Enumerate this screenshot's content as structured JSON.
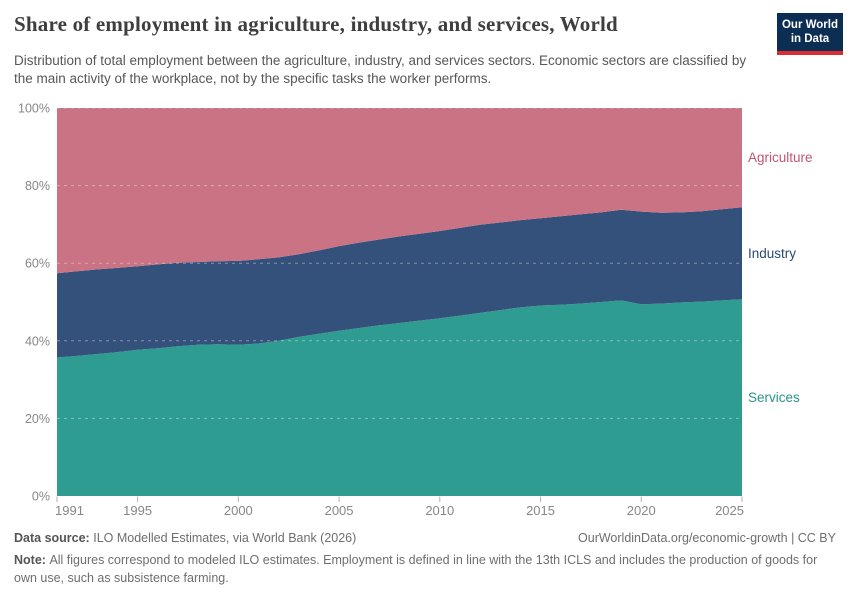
{
  "header": {
    "title": "Share of employment in agriculture, industry, and services, World",
    "subtitle": "Distribution of total employment between the agriculture, industry, and services sectors. Economic sectors are classified by the main activity of the workplace, not by the specific tasks the worker performs.",
    "logo": {
      "line1": "Our World",
      "line2": "in Data",
      "bg": "#0d2e53",
      "accent": "#dc2c33"
    }
  },
  "chart_data": {
    "type": "area",
    "stacked": true,
    "entity": "World",
    "x": [
      1991,
      1992,
      1993,
      1994,
      1995,
      1996,
      1997,
      1998,
      1999,
      2000,
      2001,
      2002,
      2003,
      2004,
      2005,
      2006,
      2007,
      2008,
      2009,
      2010,
      2011,
      2012,
      2013,
      2014,
      2015,
      2016,
      2017,
      2018,
      2019,
      2020,
      2021,
      2022,
      2023,
      2024,
      2025
    ],
    "series": [
      {
        "name": "Services",
        "color": "#2f9c91",
        "label_color": "#27948a",
        "values": [
          35.7,
          36.1,
          36.6,
          37.1,
          37.7,
          38.1,
          38.6,
          39.0,
          39.1,
          39.0,
          39.3,
          40.0,
          41.0,
          41.8,
          42.6,
          43.3,
          44.0,
          44.6,
          45.2,
          45.8,
          46.5,
          47.2,
          47.9,
          48.6,
          49.1,
          49.3,
          49.6,
          50.0,
          50.4,
          49.4,
          49.6,
          49.9,
          50.1,
          50.4,
          50.7
        ]
      },
      {
        "name": "Industry",
        "color": "#34517b",
        "label_color": "#2b4a77",
        "values": [
          21.7,
          21.8,
          21.8,
          21.7,
          21.5,
          21.6,
          21.5,
          21.3,
          21.4,
          21.6,
          21.7,
          21.5,
          21.3,
          21.5,
          21.8,
          22.0,
          22.1,
          22.3,
          22.4,
          22.5,
          22.6,
          22.7,
          22.6,
          22.5,
          22.5,
          22.8,
          23.0,
          23.1,
          23.4,
          23.9,
          23.4,
          23.2,
          23.3,
          23.5,
          23.7
        ]
      },
      {
        "name": "Agriculture",
        "color": "#ca7384",
        "label_color": "#c05670",
        "values": [
          42.6,
          42.1,
          41.6,
          41.2,
          40.8,
          40.3,
          39.9,
          39.7,
          39.5,
          39.4,
          39.0,
          38.5,
          37.7,
          36.7,
          35.6,
          34.7,
          33.9,
          33.1,
          32.4,
          31.7,
          30.9,
          30.1,
          29.5,
          28.9,
          28.4,
          27.9,
          27.4,
          26.9,
          26.2,
          26.7,
          27.0,
          26.9,
          26.6,
          26.1,
          25.6
        ]
      }
    ],
    "ylim": [
      0,
      100
    ],
    "yticks": [
      "0%",
      "20%",
      "40%",
      "60%",
      "80%",
      "100%"
    ],
    "xticks": [
      1991,
      1995,
      2000,
      2005,
      2010,
      2015,
      2020,
      2025
    ],
    "grid": "dashed-horizontal",
    "legend": "series labels at right edge",
    "axis_color": "#878787"
  },
  "footer": {
    "source_label": "Data source:",
    "source_value": "ILO Modelled Estimates, via World Bank (2026)",
    "credit": "OurWorldinData.org/economic-growth | CC BY",
    "note_label": "Note:",
    "note_value": "All figures correspond to modeled ILO estimates. Employment is defined in line with the 13th ICLS and includes the production of goods for own use, such as subsistence farming."
  }
}
